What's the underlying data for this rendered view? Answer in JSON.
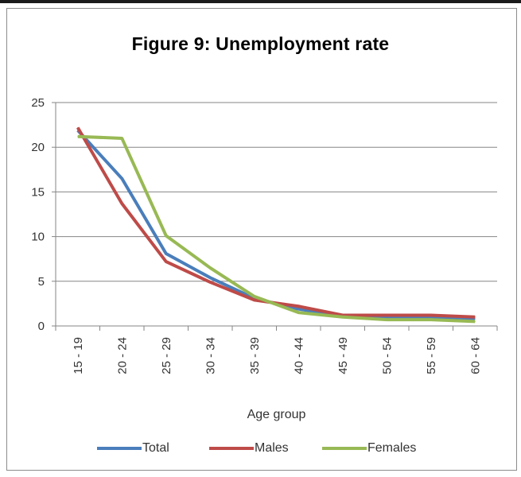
{
  "chart_data": {
    "type": "line",
    "title": "Figure 9: Unemployment rate",
    "xlabel": "Age group",
    "ylabel": "",
    "ylim": [
      0,
      25
    ],
    "yticks": [
      "0",
      "5",
      "10",
      "15",
      "20",
      "25"
    ],
    "categories": [
      "15 - 19",
      "20 - 24",
      "25 - 29",
      "30 - 34",
      "35 - 39",
      "40 - 44",
      "45 - 49",
      "50 - 54",
      "55 - 59",
      "60 - 64"
    ],
    "grid": true,
    "legend_position": "bottom",
    "series": [
      {
        "name": "Total",
        "color": "#4a7ebb",
        "values": [
          21.9,
          16.5,
          8.1,
          5.4,
          3.1,
          1.9,
          1.1,
          0.9,
          0.9,
          0.8
        ]
      },
      {
        "name": "Males",
        "color": "#be4b48",
        "values": [
          22.2,
          13.7,
          7.2,
          4.9,
          2.9,
          2.2,
          1.2,
          1.2,
          1.2,
          1.0
        ]
      },
      {
        "name": "Females",
        "color": "#98b954",
        "values": [
          21.2,
          21.0,
          10.1,
          6.5,
          3.3,
          1.5,
          1.0,
          0.7,
          0.7,
          0.5
        ]
      }
    ]
  }
}
